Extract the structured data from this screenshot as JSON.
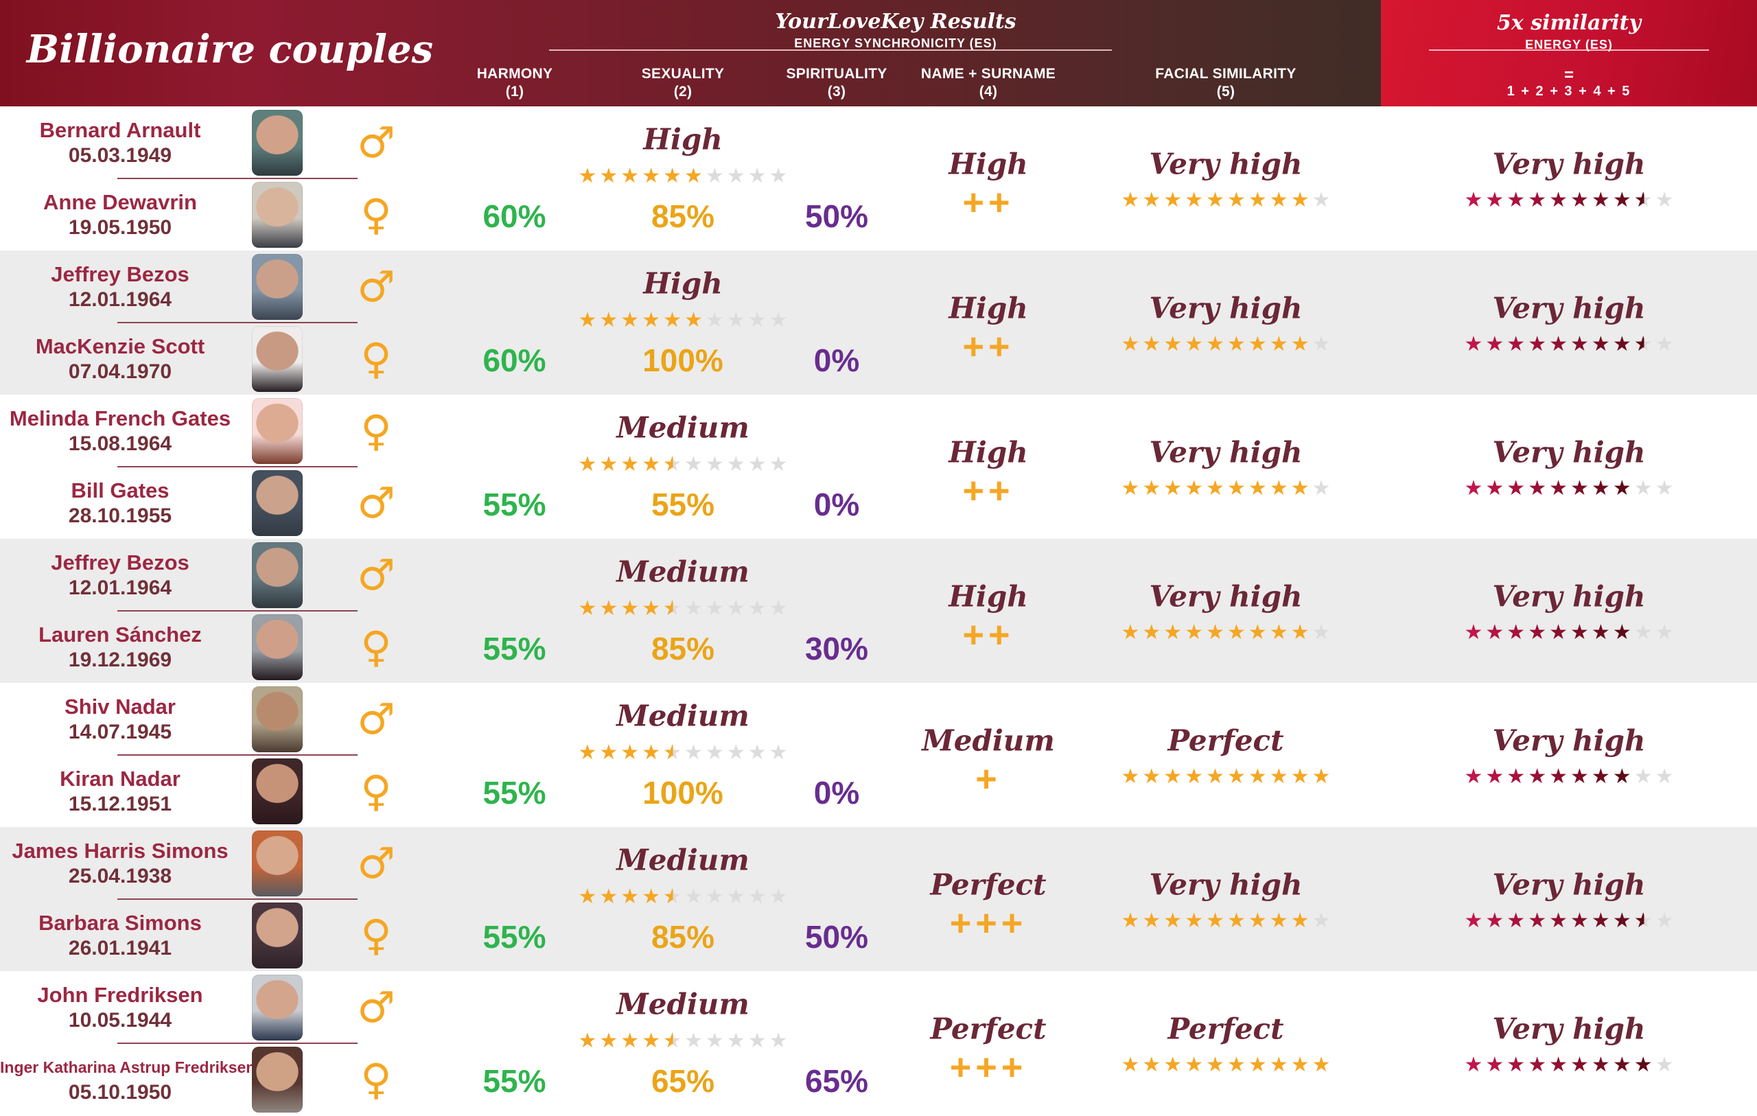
{
  "header": {
    "left_title": "Billionaire couples",
    "center": {
      "title": "YourLoveKey Results",
      "subtitle": "ENERGY SYNCHRONICITY (ES)"
    },
    "columns": [
      {
        "label": "HARMONY",
        "num": "(1)"
      },
      {
        "label": "SEXUALITY",
        "num": "(2)"
      },
      {
        "label": "SPIRITUALITY",
        "num": "(3)"
      },
      {
        "label": "NAME + SURNAME",
        "num": "(4)"
      },
      {
        "label": "FACIAL SIMILARITY",
        "num": "(5)"
      }
    ],
    "right": {
      "title": "5x similarity",
      "subtitle": "ENERGY (ES)",
      "equals": "=",
      "formula": "1 + 2 + 3 + 4 + 5"
    }
  },
  "colors": {
    "gold": "#f5a623",
    "green": "#2eb44d",
    "amber": "#eba417",
    "purple": "#682d8f",
    "name_maroon": "#9c2742",
    "date_maroon": "#713039",
    "script_maroon": "#6b2737",
    "star_empty": "#dcdcdc",
    "red_star_from": "#c2164b",
    "red_star_to": "#5e0a16",
    "header_left": "#8e1226",
    "header_mid": "#3b2b26",
    "fivex_red": "#c8102e",
    "row_alt": "#ececec",
    "divider": "#8d4452"
  },
  "rows": [
    {
      "p1": {
        "name": "Bernard Arnault",
        "date": "05.03.1949",
        "gender": "male",
        "symbol": "♂",
        "photo": {
          "bg": "#5e7f7c",
          "accent": "#2e3a40",
          "skin": "#d2a189"
        }
      },
      "p2": {
        "name": "Anne Dewavrin",
        "date": "19.05.1950",
        "gender": "female",
        "symbol": "♀",
        "photo": {
          "bg": "#cfc9c0",
          "accent": "#3a3c46",
          "skin": "#d8b49c"
        }
      },
      "harmony": "60%",
      "sexuality": {
        "label": "High",
        "stars": {
          "filled": 6,
          "half": 0,
          "total": 10
        },
        "value": "85%"
      },
      "spirituality": "50%",
      "name_surname": {
        "label": "High",
        "plus": "++"
      },
      "facial": {
        "label": "Very high",
        "stars": {
          "filled": 9,
          "half": 0,
          "total": 10
        }
      },
      "fivex": {
        "label": "Very high",
        "stars": {
          "filled": 8,
          "half": 1,
          "total": 10
        }
      }
    },
    {
      "p1": {
        "name": "Jeffrey Bezos",
        "date": "12.01.1964",
        "gender": "male",
        "symbol": "♂",
        "photo": {
          "bg": "#8496a8",
          "accent": "#3c4450",
          "skin": "#caa08a"
        }
      },
      "p2": {
        "name": "MacKenzie Scott",
        "date": "07.04.1970",
        "gender": "female",
        "symbol": "♀",
        "photo": {
          "bg": "#efedeb",
          "accent": "#241d22",
          "skin": "#c89a84"
        }
      },
      "harmony": "60%",
      "sexuality": {
        "label": "High",
        "stars": {
          "filled": 6,
          "half": 0,
          "total": 10
        },
        "value": "100%"
      },
      "spirituality": "0%",
      "name_surname": {
        "label": "High",
        "plus": "++"
      },
      "facial": {
        "label": "Very high",
        "stars": {
          "filled": 9,
          "half": 0,
          "total": 10
        }
      },
      "fivex": {
        "label": "Very high",
        "stars": {
          "filled": 8,
          "half": 1,
          "total": 10
        }
      }
    },
    {
      "p1": {
        "name": "Melinda French Gates",
        "date": "15.08.1964",
        "gender": "female",
        "symbol": "♀",
        "photo": {
          "bg": "#f6dbd8",
          "accent": "#7a3c2c",
          "skin": "#dcab92"
        }
      },
      "p2": {
        "name": "Bill Gates",
        "date": "28.10.1955",
        "gender": "male",
        "symbol": "♂",
        "photo": {
          "bg": "#46505c",
          "accent": "#323a44",
          "skin": "#cba28c"
        }
      },
      "harmony": "55%",
      "sexuality": {
        "label": "Medium",
        "stars": {
          "filled": 4,
          "half": 1,
          "total": 10
        },
        "value": "55%"
      },
      "spirituality": "0%",
      "name_surname": {
        "label": "High",
        "plus": "++"
      },
      "facial": {
        "label": "Very high",
        "stars": {
          "filled": 9,
          "half": 0,
          "total": 10
        }
      },
      "fivex": {
        "label": "Very high",
        "stars": {
          "filled": 8,
          "half": 0,
          "total": 10
        }
      }
    },
    {
      "p1": {
        "name": "Jeffrey Bezos",
        "date": "12.01.1964",
        "gender": "male",
        "symbol": "♂",
        "photo": {
          "bg": "#647880",
          "accent": "#30383e",
          "skin": "#c79e88"
        }
      },
      "p2": {
        "name": "Lauren Sánchez",
        "date": "19.12.1969",
        "gender": "female",
        "symbol": "♀",
        "photo": {
          "bg": "#9aa0a6",
          "accent": "#231a1e",
          "skin": "#cf9f8a"
        }
      },
      "harmony": "55%",
      "sexuality": {
        "label": "Medium",
        "stars": {
          "filled": 4,
          "half": 1,
          "total": 10
        },
        "value": "85%"
      },
      "spirituality": "30%",
      "name_surname": {
        "label": "High",
        "plus": "++"
      },
      "facial": {
        "label": "Very high",
        "stars": {
          "filled": 9,
          "half": 0,
          "total": 10
        }
      },
      "fivex": {
        "label": "Very high",
        "stars": {
          "filled": 8,
          "half": 0,
          "total": 10
        }
      }
    },
    {
      "p1": {
        "name": "Shiv Nadar",
        "date": "14.07.1945",
        "gender": "male",
        "symbol": "♂",
        "photo": {
          "bg": "#b3a68c",
          "accent": "#4a3a30",
          "skin": "#b98b6e"
        }
      },
      "p2": {
        "name": "Kiran Nadar",
        "date": "15.12.1951",
        "gender": "female",
        "symbol": "♀",
        "photo": {
          "bg": "#3f2629",
          "accent": "#2a181c",
          "skin": "#c69379"
        }
      },
      "harmony": "55%",
      "sexuality": {
        "label": "Medium",
        "stars": {
          "filled": 4,
          "half": 1,
          "total": 10
        },
        "value": "100%"
      },
      "spirituality": "0%",
      "name_surname": {
        "label": "Medium",
        "plus": "+"
      },
      "facial": {
        "label": "Perfect",
        "stars": {
          "filled": 10,
          "half": 0,
          "total": 10
        }
      },
      "fivex": {
        "label": "Very high",
        "stars": {
          "filled": 8,
          "half": 0,
          "total": 10
        }
      }
    },
    {
      "p1": {
        "name": "James Harris Simons",
        "date": "25.04.1938",
        "gender": "male",
        "symbol": "♂",
        "photo": {
          "bg": "#c4663a",
          "accent": "#5a5a60",
          "skin": "#d7a88c"
        }
      },
      "p2": {
        "name": "Barbara Simons",
        "date": "26.01.1941",
        "gender": "female",
        "symbol": "♀",
        "photo": {
          "bg": "#4a363e",
          "accent": "#2e2228",
          "skin": "#d2a48c"
        }
      },
      "harmony": "55%",
      "sexuality": {
        "label": "Medium",
        "stars": {
          "filled": 4,
          "half": 1,
          "total": 10
        },
        "value": "85%"
      },
      "spirituality": "50%",
      "name_surname": {
        "label": "Perfect",
        "plus": "+++"
      },
      "facial": {
        "label": "Very high",
        "stars": {
          "filled": 9,
          "half": 0,
          "total": 10
        }
      },
      "fivex": {
        "label": "Very high",
        "stars": {
          "filled": 8,
          "half": 1,
          "total": 10
        }
      }
    },
    {
      "p1": {
        "name": "John Fredriksen",
        "date": "10.05.1944",
        "gender": "male",
        "symbol": "♂",
        "photo": {
          "bg": "#c9ccd1",
          "accent": "#2c3850",
          "skin": "#d3a58c"
        }
      },
      "p2": {
        "name": "Inger Katharina Astrup Fredriksen",
        "date": "05.10.1950",
        "gender": "female",
        "symbol": "♀",
        "photo": {
          "bg": "#57362f",
          "accent": "#8f867e",
          "skin": "#cfa286"
        }
      },
      "harmony": "55%",
      "sexuality": {
        "label": "Medium",
        "stars": {
          "filled": 4,
          "half": 1,
          "total": 10
        },
        "value": "65%"
      },
      "spirituality": "65%",
      "name_surname": {
        "label": "Perfect",
        "plus": "+++"
      },
      "facial": {
        "label": "Perfect",
        "stars": {
          "filled": 10,
          "half": 0,
          "total": 10
        }
      },
      "fivex": {
        "label": "Very high",
        "stars": {
          "filled": 9,
          "half": 0,
          "total": 10
        }
      }
    }
  ],
  "chart_data": {
    "type": "table",
    "title": "Billionaire couples — YourLoveKey Results, Energy Synchronicity (ES)",
    "columns": [
      "Couple",
      "Harmony (1)",
      "Sexuality (2)",
      "Spirituality (3)",
      "Name + Surname (4)",
      "Facial similarity (5)",
      "5x similarity Energy (ES) = 1+2+3+4+5"
    ],
    "rows": [
      [
        "Bernard Arnault (05.03.1949) + Anne Dewavrin (19.05.1950)",
        "60%",
        "High 6/10 stars, 85%",
        "50%",
        "High ++",
        "Very high 9/10",
        "Very high 8.5/10"
      ],
      [
        "Jeffrey Bezos (12.01.1964) + MacKenzie Scott (07.04.1970)",
        "60%",
        "High 6/10 stars, 100%",
        "0%",
        "High ++",
        "Very high 9/10",
        "Very high 8.5/10"
      ],
      [
        "Melinda French Gates (15.08.1964) + Bill Gates (28.10.1955)",
        "55%",
        "Medium 4.5/10 stars, 55%",
        "0%",
        "High ++",
        "Very high 9/10",
        "Very high 8/10"
      ],
      [
        "Jeffrey Bezos (12.01.1964) + Lauren Sánchez (19.12.1969)",
        "55%",
        "Medium 4.5/10 stars, 85%",
        "30%",
        "High ++",
        "Very high 9/10",
        "Very high 8/10"
      ],
      [
        "Shiv Nadar (14.07.1945) + Kiran Nadar (15.12.1951)",
        "55%",
        "Medium 4.5/10 stars, 100%",
        "0%",
        "Medium +",
        "Perfect 10/10",
        "Very high 8/10"
      ],
      [
        "James Harris Simons (25.04.1938) + Barbara Simons (26.01.1941)",
        "55%",
        "Medium 4.5/10 stars, 85%",
        "50%",
        "Perfect +++",
        "Very high 9/10",
        "Very high 8.5/10"
      ],
      [
        "John Fredriksen (10.05.1944) + Inger Katharina Astrup Fredriksen (05.10.1950)",
        "55%",
        "Medium 4.5/10 stars, 65%",
        "65%",
        "Perfect +++",
        "Perfect 10/10",
        "Very high 9/10"
      ]
    ]
  }
}
